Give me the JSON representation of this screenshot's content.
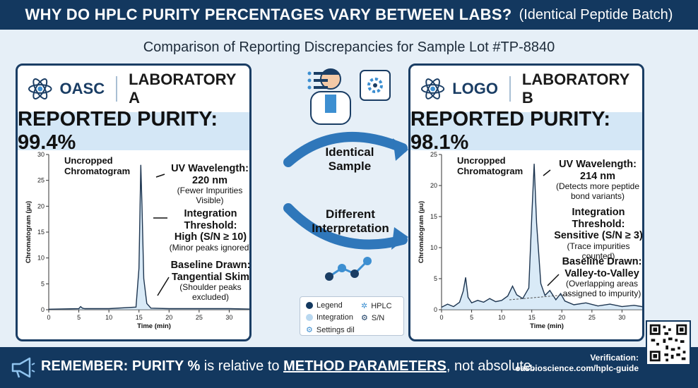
{
  "header": {
    "title": "WHY DO HPLC PURITY PERCENTAGES VARY BETWEEN LABS?",
    "title_suffix": "(Identical Peptide Batch)"
  },
  "subtitle": "Comparison of Reporting Discrepancies for Sample Lot #TP-8840",
  "lab_a": {
    "logo": "OASC",
    "name": "LABORATORY A",
    "purity": "REPORTED PURITY: 99.4%",
    "uncropped_1": "Uncropped",
    "uncropped_2": "Chromatogram",
    "wavelength": "UV Wavelength: 220 nm",
    "wavelength_note": "(Fewer Impurities Visible)",
    "threshold_1": "Integration Threshold:",
    "threshold_2": "High (S/N ≥ 10)",
    "threshold_note": "(Minor peaks ignored)",
    "baseline_1": "Baseline Drawn:",
    "baseline_2": "Tangential Skim",
    "baseline_note": "(Shoulder peaks excluded)"
  },
  "lab_b": {
    "logo": "LOGO",
    "name": "LABORATORY B",
    "purity": "REPORTED PURITY: 98.1%",
    "uncropped_1": "Uncropped",
    "uncropped_2": "Chromatogram",
    "wavelength": "UV Wavelength: 214 nm",
    "wavelength_note_1": "(Detects more peptide",
    "wavelength_note_2": "bond variants)",
    "threshold_1": "Integration Threshold:",
    "threshold_2": "Sensitive (S/N ≥ 3)",
    "threshold_note": "(Trace impurities counted)",
    "baseline_1": "Baseline Drawn:",
    "baseline_2": "Valley-to-Valley",
    "baseline_note_1": "(Overlapping areas",
    "baseline_note_2": "assigned to impurity)"
  },
  "center": {
    "arrow_top_1": "Identical",
    "arrow_top_2": "Sample",
    "arrow_bottom_1": "Different",
    "arrow_bottom_2": "Interpretation"
  },
  "legend": {
    "legend": "Legend",
    "hplc": "HPLC",
    "integration": "Integration",
    "sn": "S/N",
    "settings": "Settings dil"
  },
  "footer": {
    "remember": "REMEMBER:",
    "purity_pct": "PURITY %",
    "is_relative": "is relative to",
    "method": "METHOD PARAMETERS",
    "not_absolute": ", not absolute.",
    "verification": "Verification:",
    "url": "oasbioscience.com/hplc-guide"
  },
  "colors": {
    "navy": "#13385f",
    "peak_fill": "#b9d8f0",
    "band": "#d4e7f6"
  },
  "chart_data": [
    {
      "type": "line",
      "title": "",
      "xlabel": "Time (min)",
      "ylabel": "Chromatogram (µu)",
      "xlim": [
        0,
        35
      ],
      "ylim": [
        0,
        30
      ],
      "x_ticks": [
        0,
        5,
        10,
        15,
        20,
        25,
        30,
        35
      ],
      "y_ticks": [
        0,
        5,
        10,
        15,
        20,
        25,
        30
      ],
      "series": [
        {
          "x": [
            0,
            5,
            5.3,
            5.6,
            6,
            10,
            14.5,
            15,
            15.3,
            15.5,
            15.8,
            16.3,
            17,
            20,
            25,
            30,
            35
          ],
          "y": [
            0.1,
            0.2,
            0.6,
            0.3,
            0.2,
            0.2,
            0.5,
            8,
            28,
            20,
            6,
            1.2,
            0.3,
            0.2,
            0.2,
            0.2,
            0.1
          ]
        }
      ]
    },
    {
      "type": "line",
      "title": "",
      "xlabel": "Time (min)",
      "ylabel": "Chromatogram (µu)",
      "xlim": [
        0,
        35
      ],
      "ylim": [
        0,
        25
      ],
      "x_ticks": [
        0,
        5,
        10,
        15,
        20,
        25,
        30
      ],
      "y_ticks": [
        0,
        5,
        10,
        15,
        20,
        25
      ],
      "series": [
        {
          "x": [
            0,
            1,
            2,
            3,
            3.6,
            4,
            4.4,
            5,
            6,
            7,
            8,
            9,
            10,
            11,
            11.8,
            12.5,
            13.5,
            14.5,
            15,
            15.4,
            15.8,
            16.5,
            17.2,
            18,
            19,
            19.8,
            20.5,
            22,
            24,
            26,
            28,
            30,
            32,
            34
          ],
          "y": [
            0.4,
            0.9,
            0.5,
            1.2,
            3,
            5.2,
            2,
            1.1,
            1.5,
            1.2,
            1.8,
            1.3,
            1.5,
            2.2,
            3.8,
            2.4,
            1.8,
            3.5,
            15,
            23.5,
            14,
            4.2,
            2.3,
            3.1,
            1.6,
            2.6,
            1.4,
            0.8,
            1.1,
            0.6,
            0.9,
            0.5,
            0.7,
            0.4
          ]
        }
      ]
    }
  ]
}
